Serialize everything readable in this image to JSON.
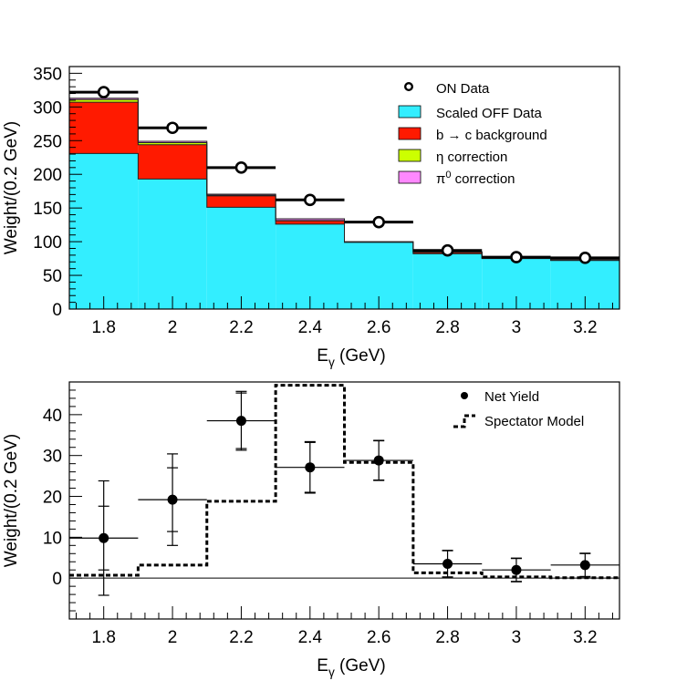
{
  "chart_data": [
    {
      "type": "bar",
      "subtype": "stacked-histogram",
      "xlabel": "E",
      "xlabel_sub": "γ",
      "xlabel_unit": " (GeV)",
      "ylabel": "Weight/(0.2 GeV)",
      "xlim": [
        1.7,
        3.3
      ],
      "ylim": [
        0,
        360
      ],
      "x_ticks": [
        "1.8",
        "2",
        "2.2",
        "2.4",
        "2.6",
        "2.8",
        "3",
        "3.2"
      ],
      "y_ticks": [
        "0",
        "50",
        "100",
        "150",
        "200",
        "250",
        "300",
        "350"
      ],
      "bin_edges": [
        1.7,
        1.9,
        2.1,
        2.3,
        2.5,
        2.7,
        2.9,
        3.1,
        3.3
      ],
      "stack": [
        {
          "name": "Scaled OFF Data",
          "color": "#33eeff",
          "values": [
            231,
            193,
            151,
            126,
            99,
            82,
            75,
            72
          ]
        },
        {
          "name": "b → c background",
          "color": "#ff1a00",
          "values": [
            76,
            51,
            17,
            5,
            0.5,
            2,
            0.5,
            0.5
          ]
        },
        {
          "name": "η correction",
          "color": "#ccff00",
          "values": [
            4,
            3,
            1,
            0.5,
            0.3,
            0.5,
            0.5,
            0.5
          ]
        },
        {
          "name": "π0 correction",
          "color": "#ff88ff",
          "values": [
            2,
            2,
            1.5,
            2.5,
            0.2,
            0.5,
            0.5,
            0.5
          ]
        }
      ],
      "on_data": {
        "name": "ON Data",
        "x": [
          1.8,
          2.0,
          2.2,
          2.4,
          2.6,
          2.8,
          3.0,
          3.2
        ],
        "y": [
          322,
          269,
          210,
          162,
          129,
          87,
          77,
          76
        ]
      },
      "legend": [
        {
          "label": "ON Data",
          "kind": "open-marker"
        },
        {
          "label": "Scaled OFF Data",
          "kind": "box",
          "color": "#33eeff"
        },
        {
          "label": "b → c background",
          "kind": "box",
          "color": "#ff1a00"
        },
        {
          "label": "η correction",
          "kind": "box",
          "color": "#ccff00"
        },
        {
          "label": "π0 correction",
          "kind": "box",
          "color": "#ff88ff"
        }
      ]
    },
    {
      "type": "scatter",
      "subtype": "points-with-errors-and-step-line",
      "xlabel": "E",
      "xlabel_sub": "γ",
      "xlabel_unit": " (GeV)",
      "ylabel": "Weight/(0.2 GeV)",
      "xlim": [
        1.7,
        3.3
      ],
      "ylim": [
        -10,
        48
      ],
      "x_ticks": [
        "1.8",
        "2",
        "2.2",
        "2.4",
        "2.6",
        "2.8",
        "3",
        "3.2"
      ],
      "y_ticks": [
        "0",
        "10",
        "20",
        "30",
        "40"
      ],
      "net_yield": {
        "name": "Net Yield",
        "x": [
          1.8,
          2.0,
          2.2,
          2.4,
          2.6,
          2.8,
          3.0,
          3.2
        ],
        "y": [
          9.8,
          19.2,
          38.5,
          27.1,
          28.8,
          3.5,
          2.0,
          3.2
        ],
        "xerr": 0.1,
        "err_inner": [
          7.8,
          7.8,
          6.8,
          6.1,
          4.8,
          3.2,
          2.8,
          2.8
        ],
        "err_outer": [
          14.0,
          11.2,
          7.2,
          6.3,
          4.9,
          3.3,
          2.9,
          2.9
        ]
      },
      "spectator_model": {
        "name": "Spectator Model",
        "bin_edges": [
          1.7,
          1.9,
          2.1,
          2.3,
          2.5,
          2.7,
          2.9,
          3.1,
          3.3
        ],
        "values": [
          0.7,
          3.2,
          18.8,
          47.2,
          28.3,
          1.3,
          0.3,
          0.1
        ]
      },
      "legend": [
        {
          "label": "Net Yield",
          "kind": "filled-marker"
        },
        {
          "label": "Spectator Model",
          "kind": "dashed-line"
        }
      ]
    }
  ]
}
